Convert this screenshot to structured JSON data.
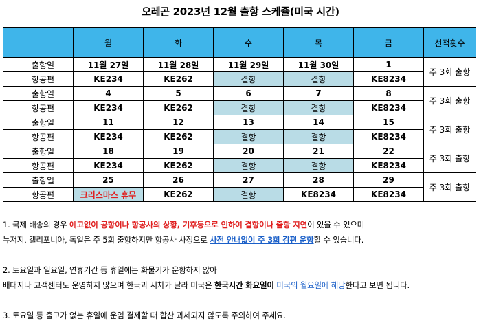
{
  "title": "오레곤 2023년 12월 출항 스케쥴(미국 시간)",
  "headers": [
    "",
    "월",
    "화",
    "수",
    "목",
    "금",
    "선적횟수"
  ],
  "weeks": [
    {
      "rows": [
        [
          "출항일",
          "11월 27일",
          "11월 28일",
          "11월 29일",
          "11월 30일",
          "1"
        ],
        [
          "항공편",
          "KE234",
          "KE262",
          "결항",
          "결항",
          "KE8234"
        ]
      ],
      "freq": "주 3회 출항"
    },
    {
      "rows": [
        [
          "출항일",
          "4",
          "5",
          "6",
          "7",
          "8"
        ],
        [
          "항공편",
          "KE234",
          "KE262",
          "결항",
          "결항",
          "KE8234"
        ]
      ],
      "freq": "주 3회 출항"
    },
    {
      "rows": [
        [
          "출항일",
          "11",
          "12",
          "13",
          "14",
          "15"
        ],
        [
          "항공편",
          "KE234",
          "KE262",
          "결항",
          "결항",
          "KE8234"
        ]
      ],
      "freq": "주 3회 출항"
    },
    {
      "rows": [
        [
          "출항일",
          "18",
          "19",
          "20",
          "21",
          "22"
        ],
        [
          "항공편",
          "KE234",
          "KE262",
          "결항",
          "결항",
          "KE8234"
        ]
      ],
      "freq": "주 3회 출항"
    },
    {
      "rows": [
        [
          "출항일",
          "25",
          "26",
          "27",
          "28",
          "29"
        ],
        [
          "항공편",
          "크리스마스 휴무",
          "KE262",
          "결항",
          "KE8234",
          "KE8234"
        ]
      ],
      "freq": "주 3회 출항"
    }
  ],
  "notes": {
    "n1a_1": "1. 국제 배송의 경우 ",
    "n1a_2": "예고없이 공항이나 항공사의 상황, 기후등으로 인하여 결항이나 출항 지연",
    "n1a_3": "이 있을 수 있으며",
    "n1b_1": "뉴저지, 캘리포니아, 독일은 주 5회 출항하지만 항공사 사정으로 ",
    "n1b_2": "사전 안내없이 주 3회 감편 운항",
    "n1b_3": "할 수 있습니다.",
    "n2a": "2. 토요일과 일요일, 연휴기간 등 휴일에는 화물기가 운항하지 않아",
    "n2b_1": "배대지나 고객센터도 운영하지 않으며 한국과 시차가 달라 미국은 ",
    "n2b_2": "한국시간 화요일이",
    "n2b_3": " 미국의 월요일에 해당",
    "n2b_4": "한다고 보면 됩니다.",
    "n3": "3. 토요일 등 출고가 없는 휴일에 운임 결제할 때 합산 과세되지 않도록 주의하여 주세요."
  }
}
